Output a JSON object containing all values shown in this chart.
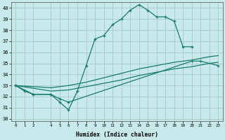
{
  "title": "",
  "xlabel": "Humidex (Indice chaleur)",
  "bg_color": "#c8eaea",
  "grid_color": "#b0d0d0",
  "line_color": "#1a7a6e",
  "xlim": [
    -0.5,
    23.5
  ],
  "ylim": [
    29.8,
    40.5
  ],
  "line1_x": [
    0,
    1,
    2,
    4,
    5,
    6,
    7,
    8,
    9,
    10,
    11,
    12,
    13,
    14,
    15,
    16,
    17,
    18,
    19,
    20
  ],
  "line1_y": [
    33.0,
    32.5,
    32.2,
    32.2,
    31.5,
    30.8,
    32.5,
    34.8,
    37.2,
    37.5,
    38.5,
    39.0,
    39.8,
    40.3,
    39.8,
    39.2,
    39.2,
    38.8,
    36.5,
    36.5
  ],
  "line2_x": [
    0,
    2,
    4,
    5,
    6,
    20,
    21,
    23
  ],
  "line2_y": [
    33.0,
    32.2,
    32.2,
    31.8,
    31.5,
    35.2,
    35.2,
    34.8
  ],
  "line3_x": [
    0,
    4,
    6,
    8,
    10,
    12,
    14,
    16,
    18,
    20,
    22,
    23
  ],
  "line3_y": [
    33.0,
    32.8,
    33.0,
    33.3,
    33.7,
    34.1,
    34.5,
    34.8,
    35.1,
    35.3,
    35.6,
    35.7
  ],
  "line4_x": [
    0,
    4,
    6,
    8,
    10,
    12,
    14,
    16,
    18,
    20,
    22,
    23
  ],
  "line4_y": [
    33.0,
    32.5,
    32.6,
    32.9,
    33.2,
    33.5,
    33.9,
    34.2,
    34.5,
    34.7,
    35.0,
    35.1
  ],
  "xtick_labels": [
    "0",
    "1",
    "2",
    "4",
    "5",
    "6",
    "7",
    "8",
    "9",
    "10",
    "11",
    "12",
    "13",
    "14",
    "15",
    "16",
    "17",
    "18",
    "19",
    "20",
    "21",
    "22",
    "23"
  ],
  "xtick_vals": [
    0,
    1,
    2,
    4,
    5,
    6,
    7,
    8,
    9,
    10,
    11,
    12,
    13,
    14,
    15,
    16,
    17,
    18,
    19,
    20,
    21,
    22,
    23
  ],
  "ytick_vals": [
    30,
    31,
    32,
    33,
    34,
    35,
    36,
    37,
    38,
    39,
    40
  ]
}
